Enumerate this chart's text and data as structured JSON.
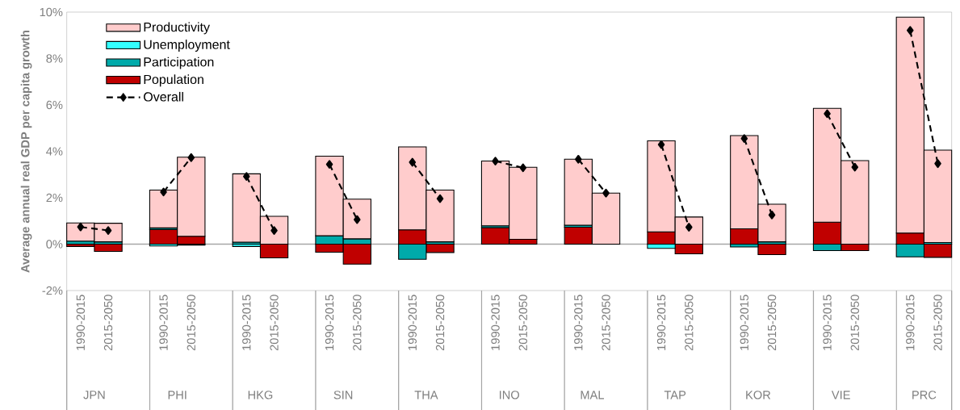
{
  "chart_data": {
    "type": "bar",
    "stacked": true,
    "ylabel": "Average annual real GDP per capita growth",
    "categories": [
      "1990-2015",
      "2015-2050",
      null,
      "1990-2015",
      "2015-2050",
      null,
      "1990-2015",
      "2015-2050",
      null,
      "1990-2015",
      "2015-2050",
      null,
      "1990-2015",
      "2015-2050",
      null,
      "1990-2015",
      "2015-2050",
      null,
      "1990-2015",
      "2015-2050",
      null,
      "1990-2015",
      "2015-2050",
      null,
      "1990-2015",
      "2015-2050",
      null,
      "1990-2015",
      "2015-2050",
      null,
      "1990-2015",
      "2015-2050"
    ],
    "annotations": [
      "JPN",
      "PHI",
      "HKG",
      "SIN",
      "THA",
      "INO",
      "MAL",
      "TAP",
      "KOR",
      "VIE",
      "PRC"
    ],
    "ylim": [
      -2,
      10
    ],
    "yticks": [
      {
        "value": -2,
        "label": "-2%"
      },
      {
        "value": 0,
        "label": "0%"
      },
      {
        "value": 2,
        "label": "2%"
      },
      {
        "value": 4,
        "label": "4%"
      },
      {
        "value": 6,
        "label": "6%"
      },
      {
        "value": 8,
        "label": "8%"
      },
      {
        "value": 10,
        "label": "10%"
      }
    ],
    "legend": "top left",
    "series": [
      {
        "name": "Population",
        "color": "#c00000",
        "values": [
          -0.1,
          -0.31,
          null,
          0.63,
          0.34,
          null,
          0,
          -0.59,
          null,
          -0.35,
          -0.86,
          null,
          0.62,
          -0.36,
          null,
          0.71,
          0.21,
          null,
          0.73,
          0,
          null,
          0.53,
          -0.42,
          null,
          0.66,
          -0.45,
          null,
          0.95,
          -0.28,
          null,
          0.48,
          -0.57
        ]
      },
      {
        "name": "Participation",
        "color": "#00aaaa",
        "values": [
          0.13,
          0.1,
          null,
          0.07,
          -0.04,
          null,
          0.09,
          0,
          null,
          0.36,
          0.23,
          null,
          -0.65,
          0.1,
          null,
          0.08,
          0,
          null,
          0.09,
          0,
          null,
          0,
          0,
          null,
          -0.12,
          0.1,
          null,
          -0.28,
          0,
          null,
          -0.55,
          0.07
        ]
      },
      {
        "name": "Unemployment",
        "color": "#33ffff",
        "values": [
          0,
          0,
          null,
          -0.08,
          0,
          null,
          -0.1,
          0,
          null,
          0,
          0,
          null,
          0,
          0,
          null,
          0,
          0,
          null,
          0,
          0,
          null,
          -0.18,
          0,
          null,
          0,
          0,
          null,
          0,
          0,
          null,
          0,
          0
        ]
      },
      {
        "name": "Productivity",
        "color": "#ffcccc",
        "values": [
          0.78,
          0.8,
          null,
          1.63,
          3.41,
          null,
          2.94,
          1.2,
          null,
          3.43,
          1.71,
          null,
          3.57,
          2.23,
          null,
          2.79,
          3.1,
          null,
          2.84,
          2.2,
          null,
          3.92,
          1.17,
          null,
          4.02,
          1.62,
          null,
          4.9,
          3.6,
          null,
          9.3,
          3.98
        ]
      },
      {
        "name": "Overall",
        "type": "line",
        "color": "#000000",
        "marker": "diamond",
        "line_style": "dashed",
        "values": [
          0.74,
          0.59,
          null,
          2.25,
          3.73,
          null,
          2.92,
          0.59,
          null,
          3.44,
          1.06,
          null,
          3.53,
          1.96,
          null,
          3.58,
          3.29,
          null,
          3.66,
          2.2,
          null,
          4.29,
          0.73,
          null,
          4.55,
          1.26,
          null,
          5.62,
          3.32,
          null,
          9.21,
          3.47
        ]
      }
    ]
  }
}
